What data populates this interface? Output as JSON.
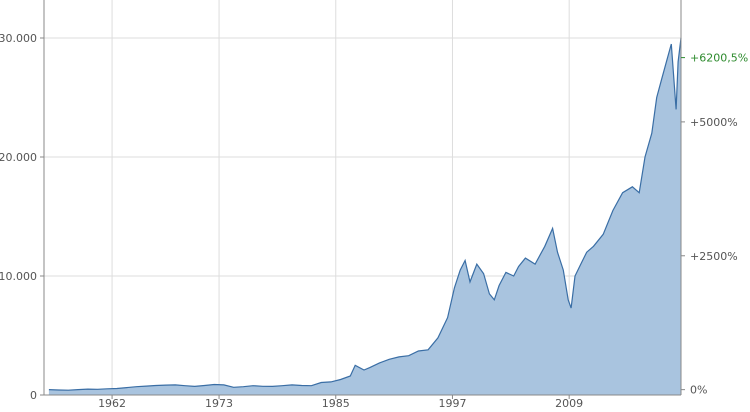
{
  "chart_data": {
    "type": "area",
    "title": "",
    "xlabel": "",
    "ylabel": "",
    "colors": {
      "line": "#3a6ea5",
      "fill": "#a9c4df",
      "grid": "#dddddd",
      "axis": "#888888",
      "current_label": "#2e8b2e"
    },
    "grid": true,
    "xlim": [
      1955,
      2020.5
    ],
    "ylim": [
      0,
      30000
    ],
    "x_ticks": [
      {
        "value": 1962,
        "label": "1962"
      },
      {
        "value": 1973,
        "label": "1973"
      },
      {
        "value": 1985,
        "label": "1985"
      },
      {
        "value": 1997,
        "label": "1997"
      },
      {
        "value": 2009,
        "label": "2009"
      }
    ],
    "y_ticks_left": [
      {
        "value": 0,
        "label": "0"
      },
      {
        "value": 10000,
        "label": "10.000"
      },
      {
        "value": 20000,
        "label": "20.000"
      },
      {
        "value": 30000,
        "label": "30.000"
      }
    ],
    "y_ticks_right": [
      {
        "value": 0,
        "label": "0%"
      },
      {
        "value": 2500,
        "label": "+2500%"
      },
      {
        "value": 5000,
        "label": "+5000%"
      }
    ],
    "current_marker": {
      "value": 6200.5,
      "label": "+6200,5%"
    },
    "series": [
      {
        "x": [
          1955.5,
          1956.5,
          1957.5,
          1958.5,
          1959.5,
          1960.5,
          1961.5,
          1962.5,
          1963.5,
          1964.5,
          1965.5,
          1966.5,
          1967.5,
          1968.5,
          1969.5,
          1970.5,
          1971.5,
          1972.5,
          1973.5,
          1974.5,
          1975.5,
          1976.5,
          1977.5,
          1978.5,
          1979.5,
          1980.5,
          1981.5,
          1982.5,
          1983.5,
          1984.5,
          1985.5,
          1986.5,
          1987.0,
          1987.9,
          1988.5,
          1989.5,
          1990.5,
          1991.5,
          1992.5,
          1993.5,
          1994.5,
          1995.5,
          1996.5,
          1997.2,
          1997.8,
          1998.3,
          1998.8,
          1999.5,
          2000.2,
          2000.8,
          2001.3,
          2001.8,
          2002.5,
          2003.3,
          2003.8,
          2004.5,
          2005.5,
          2006.5,
          2007.3,
          2007.8,
          2008.4,
          2008.9,
          2009.2,
          2009.6,
          2010.2,
          2010.8,
          2011.5,
          2012.5,
          2013.5,
          2014.5,
          2015.5,
          2016.2,
          2016.8,
          2017.5,
          2018.0,
          2018.5,
          2019.0,
          2019.5,
          2020.0,
          2020.2,
          2020.5
        ],
        "y": [
          450,
          420,
          400,
          450,
          500,
          480,
          520,
          550,
          620,
          700,
          750,
          800,
          830,
          850,
          780,
          720,
          800,
          880,
          850,
          650,
          700,
          780,
          730,
          720,
          780,
          850,
          800,
          780,
          1050,
          1100,
          1300,
          1600,
          2500,
          2100,
          2300,
          2700,
          3000,
          3200,
          3300,
          3700,
          3800,
          4800,
          6500,
          9000,
          10500,
          11300,
          9500,
          11000,
          10200,
          8500,
          8000,
          9200,
          10300,
          10000,
          10800,
          11500,
          11000,
          12500,
          14000,
          12000,
          10500,
          8000,
          7300,
          10000,
          11000,
          12000,
          12500,
          13500,
          15500,
          17000,
          17500,
          17000,
          20000,
          22000,
          25000,
          26500,
          28000,
          29500,
          24000,
          28000,
          30000
        ]
      }
    ]
  }
}
